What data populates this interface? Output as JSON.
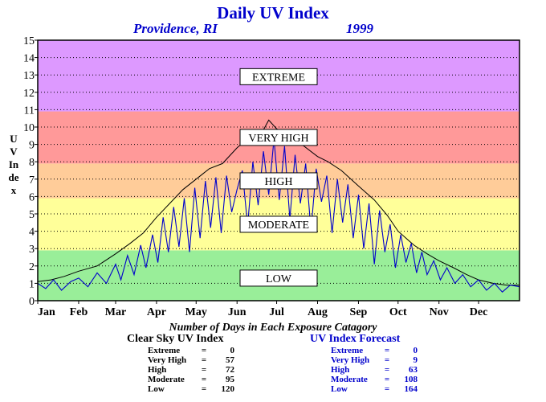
{
  "header": {
    "title": "Daily UV Index",
    "location": "Providence, RI",
    "year": "1999"
  },
  "axes": {
    "ylabel": "UV Index",
    "y_ticks": [
      0,
      1,
      2,
      3,
      4,
      5,
      6,
      7,
      8,
      9,
      10,
      11,
      12,
      13,
      14,
      15
    ],
    "x_ticks": [
      "Jan",
      "Feb",
      "Mar",
      "Apr",
      "May",
      "Jun",
      "Jul",
      "Aug",
      "Sep",
      "Oct",
      "Nov",
      "Dec"
    ]
  },
  "bands": [
    {
      "label": "LOW",
      "from": 0,
      "to": 2.9,
      "color": "#99ee99",
      "label_at": 1.3
    },
    {
      "label": "MODERATE",
      "from": 2.9,
      "to": 5.9,
      "color": "#ffff99",
      "label_at": 4.4
    },
    {
      "label": "HIGH",
      "from": 5.9,
      "to": 7.9,
      "color": "#ffcc99",
      "label_at": 6.9
    },
    {
      "label": "VERY HIGH",
      "from": 7.9,
      "to": 10.9,
      "color": "#ff9999",
      "label_at": 9.4
    },
    {
      "label": "EXTREME",
      "from": 10.9,
      "to": 15,
      "color": "#dd99ff",
      "label_at": 12.9
    }
  ],
  "caption": "Number of Days in Each Exposure Catagory",
  "clear_sky": {
    "title": "Clear Sky UV Index",
    "rows": [
      {
        "label": "Extreme",
        "eq": "=",
        "value": "0"
      },
      {
        "label": "Very High",
        "eq": "=",
        "value": "57"
      },
      {
        "label": "High",
        "eq": "=",
        "value": "72"
      },
      {
        "label": "Moderate",
        "eq": "=",
        "value": "95"
      },
      {
        "label": "Low",
        "eq": "=",
        "value": "120"
      }
    ]
  },
  "forecast": {
    "title": "UV Index Forecast",
    "rows": [
      {
        "label": "Extreme",
        "eq": "=",
        "value": "0"
      },
      {
        "label": "Very High",
        "eq": "=",
        "value": "9"
      },
      {
        "label": "High",
        "eq": "=",
        "value": "63"
      },
      {
        "label": "Moderate",
        "eq": "=",
        "value": "108"
      },
      {
        "label": "Low",
        "eq": "=",
        "value": "164"
      }
    ]
  },
  "chart_data": {
    "type": "line",
    "title": "Daily UV Index",
    "subtitle": "Providence, RI 1999",
    "xlabel": "",
    "ylabel": "UV Index",
    "ylim": [
      0,
      15
    ],
    "xlim": [
      0,
      365
    ],
    "grid": true,
    "x_tick_labels": [
      "Jan",
      "Feb",
      "Mar",
      "Apr",
      "May",
      "Jun",
      "Jul",
      "Aug",
      "Sep",
      "Oct",
      "Nov",
      "Dec"
    ],
    "x_tick_days": [
      0,
      31,
      59,
      90,
      120,
      151,
      181,
      212,
      243,
      273,
      304,
      334
    ],
    "series": [
      {
        "name": "Clear Sky UV Index",
        "color": "#000000",
        "points": [
          [
            0,
            1.1
          ],
          [
            10,
            1.2
          ],
          [
            20,
            1.4
          ],
          [
            31,
            1.7
          ],
          [
            45,
            2.0
          ],
          [
            59,
            2.7
          ],
          [
            70,
            3.3
          ],
          [
            80,
            3.9
          ],
          [
            90,
            4.8
          ],
          [
            100,
            5.6
          ],
          [
            110,
            6.4
          ],
          [
            120,
            7.0
          ],
          [
            130,
            7.6
          ],
          [
            140,
            7.9
          ],
          [
            151,
            8.8
          ],
          [
            160,
            9.4
          ],
          [
            170,
            9.7
          ],
          [
            175,
            10.4
          ],
          [
            181,
            9.9
          ],
          [
            190,
            9.5
          ],
          [
            200,
            9.0
          ],
          [
            212,
            8.3
          ],
          [
            220,
            8.0
          ],
          [
            230,
            7.5
          ],
          [
            243,
            6.6
          ],
          [
            255,
            5.8
          ],
          [
            265,
            4.9
          ],
          [
            273,
            4.0
          ],
          [
            285,
            3.2
          ],
          [
            295,
            2.7
          ],
          [
            304,
            2.3
          ],
          [
            315,
            1.9
          ],
          [
            325,
            1.5
          ],
          [
            334,
            1.2
          ],
          [
            345,
            1.0
          ],
          [
            355,
            0.9
          ],
          [
            365,
            0.9
          ]
        ]
      },
      {
        "name": "UV Index Forecast",
        "color": "#0000cc",
        "points": [
          [
            0,
            1.0
          ],
          [
            6,
            0.7
          ],
          [
            12,
            1.2
          ],
          [
            18,
            0.6
          ],
          [
            25,
            1.1
          ],
          [
            31,
            1.3
          ],
          [
            38,
            0.8
          ],
          [
            45,
            1.6
          ],
          [
            52,
            1.0
          ],
          [
            59,
            2.1
          ],
          [
            63,
            1.2
          ],
          [
            68,
            2.6
          ],
          [
            73,
            1.5
          ],
          [
            78,
            3.2
          ],
          [
            82,
            1.9
          ],
          [
            87,
            3.8
          ],
          [
            91,
            2.2
          ],
          [
            95,
            4.8
          ],
          [
            99,
            2.8
          ],
          [
            103,
            5.4
          ],
          [
            107,
            3.1
          ],
          [
            111,
            5.9
          ],
          [
            115,
            2.8
          ],
          [
            119,
            6.5
          ],
          [
            123,
            3.6
          ],
          [
            127,
            6.9
          ],
          [
            131,
            4.2
          ],
          [
            135,
            7.1
          ],
          [
            139,
            3.9
          ],
          [
            143,
            7.2
          ],
          [
            147,
            5.1
          ],
          [
            151,
            6.4
          ],
          [
            155,
            7.5
          ],
          [
            159,
            4.3
          ],
          [
            163,
            8.0
          ],
          [
            167,
            5.5
          ],
          [
            171,
            8.6
          ],
          [
            175,
            6.1
          ],
          [
            179,
            9.3
          ],
          [
            183,
            5.8
          ],
          [
            187,
            8.9
          ],
          [
            191,
            4.7
          ],
          [
            195,
            8.4
          ],
          [
            199,
            5.6
          ],
          [
            203,
            7.9
          ],
          [
            207,
            4.0
          ],
          [
            211,
            7.6
          ],
          [
            215,
            5.7
          ],
          [
            219,
            7.2
          ],
          [
            223,
            3.9
          ],
          [
            227,
            7.0
          ],
          [
            231,
            4.5
          ],
          [
            235,
            6.7
          ],
          [
            239,
            3.6
          ],
          [
            243,
            6.1
          ],
          [
            247,
            3.0
          ],
          [
            251,
            5.6
          ],
          [
            255,
            2.1
          ],
          [
            259,
            5.2
          ],
          [
            263,
            2.8
          ],
          [
            267,
            4.4
          ],
          [
            271,
            1.9
          ],
          [
            275,
            3.8
          ],
          [
            279,
            2.2
          ],
          [
            283,
            3.3
          ],
          [
            287,
            1.6
          ],
          [
            291,
            2.8
          ],
          [
            295,
            1.5
          ],
          [
            300,
            2.3
          ],
          [
            305,
            1.2
          ],
          [
            310,
            1.9
          ],
          [
            316,
            1.0
          ],
          [
            322,
            1.5
          ],
          [
            328,
            0.8
          ],
          [
            334,
            1.2
          ],
          [
            340,
            0.6
          ],
          [
            346,
            1.0
          ],
          [
            352,
            0.5
          ],
          [
            358,
            0.9
          ],
          [
            365,
            0.8
          ]
        ]
      }
    ]
  }
}
